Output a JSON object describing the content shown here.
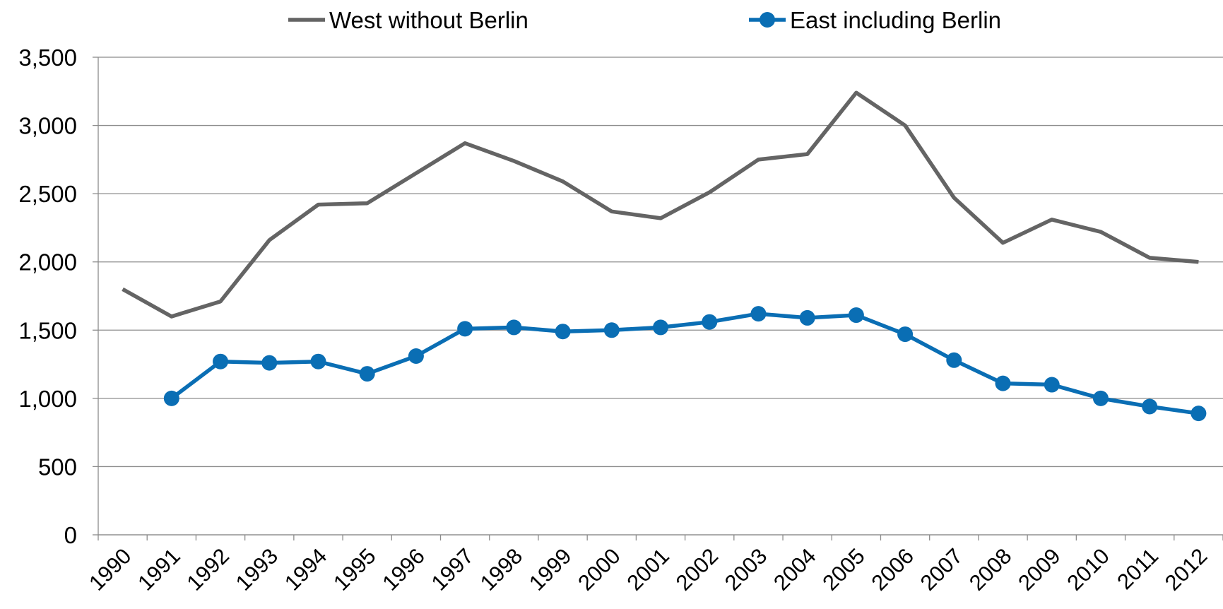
{
  "chart_data": {
    "type": "line",
    "categories": [
      "1990",
      "1991",
      "1992",
      "1993",
      "1994",
      "1995",
      "1996",
      "1997",
      "1998",
      "1999",
      "2000",
      "2001",
      "2002",
      "2003",
      "2004",
      "2005",
      "2006",
      "2007",
      "2008",
      "2009",
      "2010",
      "2011",
      "2012"
    ],
    "series": [
      {
        "name": "West without Berlin",
        "color": "#646464",
        "marker": false,
        "values": [
          1800,
          1600,
          1710,
          2160,
          2420,
          2430,
          2650,
          2870,
          2740,
          2590,
          2370,
          2320,
          2510,
          2750,
          2790,
          3240,
          3000,
          2470,
          2140,
          2310,
          2220,
          2030,
          2000
        ]
      },
      {
        "name": "East including Berlin",
        "color": "#0a6eb4",
        "marker": true,
        "values": [
          null,
          1000,
          1270,
          1260,
          1270,
          1180,
          1310,
          1510,
          1520,
          1490,
          1500,
          1520,
          1560,
          1620,
          1590,
          1610,
          1470,
          1280,
          1110,
          1100,
          1000,
          940,
          890
        ]
      }
    ],
    "ylim": [
      0,
      3500
    ],
    "yticks": [
      0,
      500,
      {
        "value": 1000,
        "label": "1,000"
      },
      {
        "value": 1500,
        "label": "1,500"
      },
      {
        "value": 2000,
        "label": "2,000"
      },
      {
        "value": 2500,
        "label": "2,500"
      },
      {
        "value": 3000,
        "label": "3,000"
      },
      {
        "value": 3500,
        "label": "3,500"
      }
    ],
    "grid": true,
    "legend": "top"
  }
}
